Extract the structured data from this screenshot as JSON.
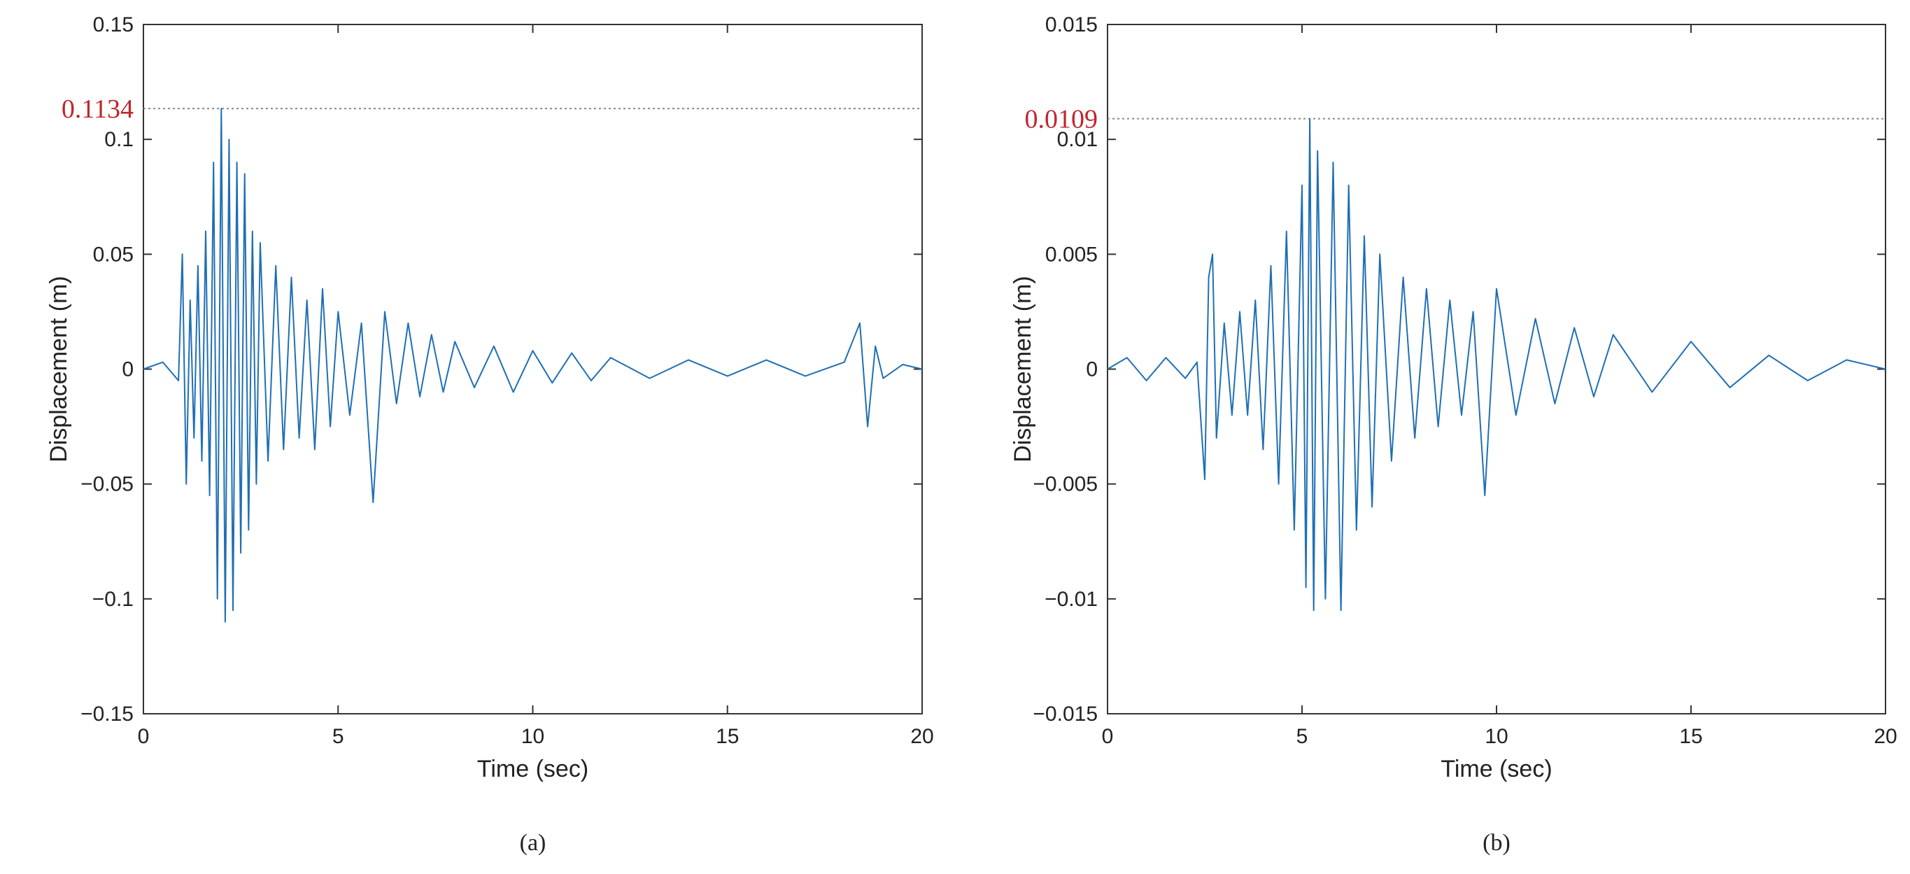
{
  "colors": {
    "signal": "#1f6fb4",
    "peak": "#c0262d",
    "axis": "#333333",
    "guide": "#888888"
  },
  "chart_data": [
    {
      "type": "line",
      "caption": "(a)",
      "xlabel": "Time (sec)",
      "ylabel": "Displacement (m)",
      "xlim": [
        0,
        20
      ],
      "ylim": [
        -0.15,
        0.15
      ],
      "xticks": [
        "0",
        "5",
        "10",
        "15",
        "20"
      ],
      "yticks": [
        "−0.15",
        "−0.1",
        "−0.05",
        "0",
        "0.05",
        "0.1",
        "0.15"
      ],
      "peak": {
        "value": 0.1134,
        "label": "0.1134"
      },
      "series": [
        {
          "x": [
            0,
            0.5,
            0.9,
            1.0,
            1.1,
            1.2,
            1.3,
            1.4,
            1.5,
            1.6,
            1.7,
            1.8,
            1.9,
            2.0,
            2.1,
            2.2,
            2.3,
            2.4,
            2.5,
            2.6,
            2.7,
            2.8,
            2.9,
            3.0,
            3.2,
            3.4,
            3.6,
            3.8,
            4.0,
            4.2,
            4.4,
            4.6,
            4.8,
            5.0,
            5.3,
            5.6,
            5.9,
            6.2,
            6.5,
            6.8,
            7.1,
            7.4,
            7.7,
            8.0,
            8.5,
            9.0,
            9.5,
            10.0,
            10.5,
            11.0,
            11.5,
            12.0,
            13.0,
            14.0,
            15.0,
            16.0,
            17.0,
            18.0,
            18.4,
            18.6,
            18.8,
            19.0,
            19.5,
            20.0
          ],
          "y": [
            0.0,
            0.003,
            -0.005,
            0.05,
            -0.05,
            0.03,
            -0.03,
            0.045,
            -0.04,
            0.06,
            -0.055,
            0.09,
            -0.1,
            0.1134,
            -0.11,
            0.1,
            -0.105,
            0.09,
            -0.08,
            0.085,
            -0.07,
            0.06,
            -0.05,
            0.055,
            -0.04,
            0.045,
            -0.035,
            0.04,
            -0.03,
            0.03,
            -0.035,
            0.035,
            -0.025,
            0.025,
            -0.02,
            0.02,
            -0.058,
            0.025,
            -0.015,
            0.02,
            -0.012,
            0.015,
            -0.01,
            0.012,
            -0.008,
            0.01,
            -0.01,
            0.008,
            -0.006,
            0.007,
            -0.005,
            0.005,
            -0.004,
            0.004,
            -0.003,
            0.004,
            -0.003,
            0.003,
            0.02,
            -0.025,
            0.01,
            -0.004,
            0.002,
            0.0
          ]
        }
      ]
    },
    {
      "type": "line",
      "caption": "(b)",
      "xlabel": "Time (sec)",
      "ylabel": "Displacement (m)",
      "xlim": [
        0,
        20
      ],
      "ylim": [
        -0.015,
        0.015
      ],
      "xticks": [
        "0",
        "5",
        "10",
        "15",
        "20"
      ],
      "yticks": [
        "−0.015",
        "−0.01",
        "−0.005",
        "0",
        "0.005",
        "0.01",
        "0.015"
      ],
      "peak": {
        "value": 0.0109,
        "label": "0.0109"
      },
      "series": [
        {
          "x": [
            0,
            0.5,
            1.0,
            1.5,
            2.0,
            2.3,
            2.5,
            2.6,
            2.7,
            2.8,
            3.0,
            3.2,
            3.4,
            3.6,
            3.8,
            4.0,
            4.2,
            4.4,
            4.6,
            4.8,
            5.0,
            5.1,
            5.2,
            5.3,
            5.4,
            5.6,
            5.8,
            6.0,
            6.2,
            6.4,
            6.6,
            6.8,
            7.0,
            7.3,
            7.6,
            7.9,
            8.2,
            8.5,
            8.8,
            9.1,
            9.4,
            9.7,
            10.0,
            10.5,
            11.0,
            11.5,
            12.0,
            12.5,
            13.0,
            14.0,
            15.0,
            16.0,
            17.0,
            18.0,
            19.0,
            20.0
          ],
          "y": [
            0.0,
            0.0005,
            -0.0005,
            0.0005,
            -0.0004,
            0.0003,
            -0.0048,
            0.004,
            0.005,
            -0.003,
            0.002,
            -0.002,
            0.0025,
            -0.002,
            0.003,
            -0.0035,
            0.0045,
            -0.005,
            0.006,
            -0.007,
            0.008,
            -0.0095,
            0.0109,
            -0.0105,
            0.0095,
            -0.01,
            0.009,
            -0.0105,
            0.008,
            -0.007,
            0.0058,
            -0.006,
            0.005,
            -0.004,
            0.004,
            -0.003,
            0.0035,
            -0.0025,
            0.003,
            -0.002,
            0.0025,
            -0.0055,
            0.0035,
            -0.002,
            0.0022,
            -0.0015,
            0.0018,
            -0.0012,
            0.0015,
            -0.001,
            0.0012,
            -0.0008,
            0.0006,
            -0.0005,
            0.0004,
            0.0
          ]
        }
      ]
    }
  ]
}
